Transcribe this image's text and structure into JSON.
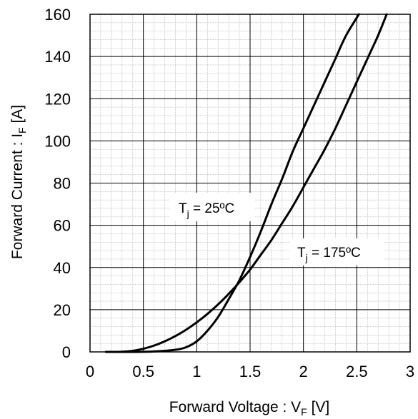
{
  "chart_data": {
    "type": "line",
    "xlim": [
      0,
      3
    ],
    "ylim": [
      0,
      160
    ],
    "x_major_ticks": [
      0,
      0.5,
      1,
      1.5,
      2,
      2.5,
      3
    ],
    "x_tick_labels": [
      "0",
      "0.5",
      "1",
      "1.5",
      "2",
      "2.5",
      "3"
    ],
    "y_major_ticks": [
      0,
      20,
      40,
      60,
      80,
      100,
      120,
      140,
      160
    ],
    "y_tick_labels": [
      "0",
      "20",
      "40",
      "60",
      "80",
      "100",
      "120",
      "140",
      "160"
    ],
    "x_minor_step": 0.1,
    "y_minor_step": 4,
    "grid": true,
    "xlabel": {
      "main": "Forward Voltage : V",
      "sub": "F",
      "unit": " [V]"
    },
    "ylabel": {
      "main": "Forward Current : I",
      "sub": "F",
      "unit": " [A]"
    },
    "series": [
      {
        "label": {
          "main": "T",
          "sub": "j",
          "rest": " = 25ºC"
        },
        "points": [
          [
            0.15,
            0
          ],
          [
            0.4,
            0
          ],
          [
            0.6,
            0.2
          ],
          [
            0.8,
            1
          ],
          [
            0.9,
            2.2
          ],
          [
            1,
            5
          ],
          [
            1.1,
            10
          ],
          [
            1.2,
            16.5
          ],
          [
            1.3,
            25
          ],
          [
            1.4,
            34
          ],
          [
            1.5,
            45
          ],
          [
            1.6,
            57
          ],
          [
            1.7,
            70
          ],
          [
            1.8,
            82
          ],
          [
            1.9,
            95
          ],
          [
            2,
            106
          ],
          [
            2.1,
            117
          ],
          [
            2.2,
            128
          ],
          [
            2.3,
            139
          ],
          [
            2.4,
            150
          ],
          [
            2.52,
            160
          ]
        ]
      },
      {
        "label": {
          "main": "T",
          "sub": "j",
          "rest": " = 175ºC"
        },
        "points": [
          [
            0.15,
            0
          ],
          [
            0.3,
            0.1
          ],
          [
            0.4,
            0.5
          ],
          [
            0.5,
            1.5
          ],
          [
            0.6,
            3
          ],
          [
            0.7,
            5
          ],
          [
            0.8,
            7.5
          ],
          [
            0.9,
            10.5
          ],
          [
            1,
            14
          ],
          [
            1.1,
            18
          ],
          [
            1.2,
            22.5
          ],
          [
            1.3,
            27.5
          ],
          [
            1.4,
            33
          ],
          [
            1.5,
            39
          ],
          [
            1.6,
            46
          ],
          [
            1.7,
            53
          ],
          [
            1.8,
            61
          ],
          [
            1.9,
            69
          ],
          [
            2,
            78
          ],
          [
            2.1,
            87
          ],
          [
            2.2,
            96
          ],
          [
            2.3,
            106
          ],
          [
            2.4,
            117
          ],
          [
            2.5,
            128
          ],
          [
            2.6,
            139
          ],
          [
            2.7,
            150
          ],
          [
            2.78,
            160
          ]
        ]
      }
    ]
  }
}
